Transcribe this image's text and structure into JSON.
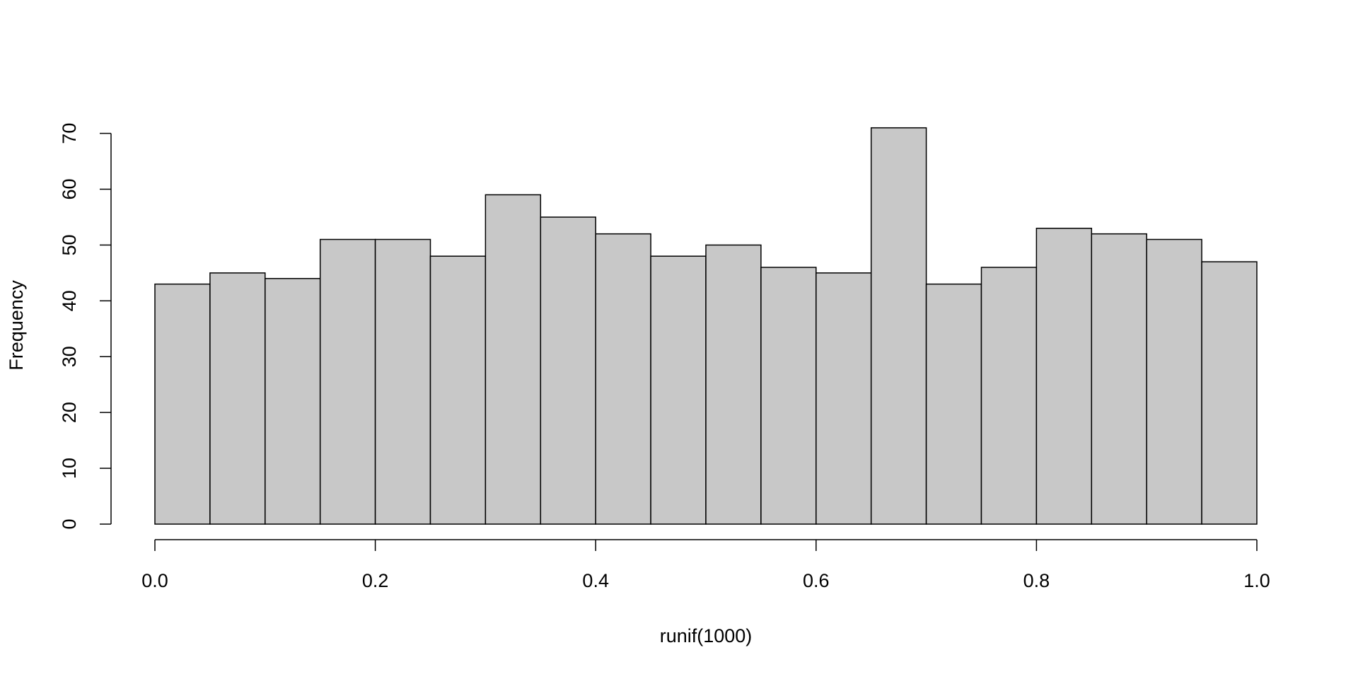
{
  "chart_data": {
    "type": "histogram",
    "x_label": "runif(1000)",
    "y_label": "Frequency",
    "bins": [
      0,
      0.05,
      0.1,
      0.15,
      0.2,
      0.25,
      0.3,
      0.35,
      0.4,
      0.45,
      0.5,
      0.55,
      0.6,
      0.65,
      0.7,
      0.75,
      0.8,
      0.85,
      0.9,
      0.95,
      1
    ],
    "values": [
      43,
      45,
      44,
      51,
      51,
      48,
      59,
      55,
      52,
      48,
      50,
      46,
      45,
      71,
      43,
      46,
      53,
      52,
      51,
      47
    ],
    "color": "#c8c8c8",
    "edge_color": "#000000",
    "xlim": [
      0,
      1
    ],
    "xticks": [
      {
        "value": 0,
        "label": "0.0"
      },
      0.2,
      0.4,
      0.6,
      0.8,
      {
        "value": 1,
        "label": "1.0"
      }
    ],
    "ylim": [
      0,
      71
    ],
    "yticks": [
      0,
      10,
      20,
      30,
      40,
      50,
      60,
      70
    ]
  }
}
